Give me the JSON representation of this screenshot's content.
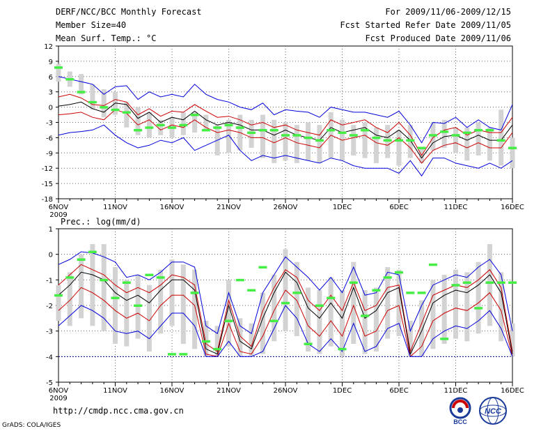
{
  "header": {
    "title": "DERF/NCC/BCC Monthly Forecast",
    "member": "Member Size=40",
    "variable": "Mean Surf. Temp.: °C",
    "period": "For 2009/11/06-2009/12/15",
    "started": "Fcst Started Refer Date 2009/11/05",
    "produced": "Fcst Produced Date 2009/11/06"
  },
  "footer": {
    "url": "http://cmdp.ncc.cma.gov.cn",
    "grads": "GrADS: COLA/IGES",
    "logo_bcc": "BCC",
    "logo_ncc": "NCC"
  },
  "colors": {
    "ensemble_max_min": "#0000dd",
    "spread": "#cc0000",
    "mean": "#000000",
    "box": "#d3d3d3",
    "observed": "#44ee44",
    "grid": "#666666"
  },
  "chart_data": [
    {
      "type": "line",
      "title": "Mean Surf. Temp.: °C",
      "ylim": [
        -18,
        12
      ],
      "yticks": [
        "12",
        "9",
        "6",
        "3",
        "0",
        "-3",
        "-6",
        "-9",
        "-12",
        "-15",
        "-18"
      ],
      "xtick_labels": [
        "6NOV",
        "11NOV",
        "16NOV",
        "21NOV",
        "26NOV",
        "1DEC",
        "6DEC",
        "11DEC",
        "16DEC"
      ],
      "xtick_sublabel": "2009",
      "days": 41,
      "series": [
        {
          "name": "max",
          "values": [
            6.0,
            5.5,
            5.0,
            4.5,
            2.5,
            4.0,
            4.2,
            1.5,
            3.0,
            2.0,
            2.5,
            2.0,
            4.5,
            2.5,
            1.5,
            1.0,
            0.0,
            -0.5,
            0.8,
            -1.5,
            -0.5,
            -0.8,
            -1.0,
            -2.0,
            0.0,
            -0.5,
            -1.0,
            -1.0,
            -1.5,
            -2.0,
            -0.8,
            -3.5,
            -7.0,
            -3.0,
            -3.2,
            -2.0,
            -4.0,
            -2.5,
            -4.0,
            -4.5,
            0.5
          ]
        },
        {
          "name": "upper",
          "values": [
            2.0,
            2.5,
            1.8,
            0.5,
            0.3,
            1.5,
            1.0,
            -1.5,
            -0.3,
            -1.8,
            -0.8,
            -1.0,
            0.5,
            -0.8,
            -2.0,
            -1.8,
            -2.5,
            -3.5,
            -3.0,
            -4.0,
            -3.5,
            -4.5,
            -5.0,
            -5.5,
            -2.5,
            -3.5,
            -3.0,
            -2.5,
            -4.0,
            -5.0,
            -3.0,
            -5.5,
            -9.5,
            -6.0,
            -4.5,
            -4.0,
            -5.5,
            -4.5,
            -5.0,
            -5.0,
            -2.0
          ]
        },
        {
          "name": "mean",
          "values": [
            0.2,
            0.5,
            1.0,
            -0.3,
            -1.0,
            0.8,
            0.5,
            -2.2,
            -1.0,
            -3.0,
            -2.0,
            -2.5,
            -0.8,
            -2.5,
            -3.5,
            -3.0,
            -3.5,
            -4.5,
            -4.5,
            -5.5,
            -4.5,
            -5.5,
            -6.0,
            -6.5,
            -4.0,
            -5.0,
            -4.5,
            -4.0,
            -5.5,
            -6.0,
            -4.5,
            -6.5,
            -10.0,
            -7.0,
            -5.8,
            -5.5,
            -6.5,
            -5.5,
            -6.5,
            -6.5,
            -3.5
          ]
        },
        {
          "name": "lower",
          "values": [
            -1.5,
            -1.3,
            -1.0,
            -2.0,
            -2.5,
            -0.5,
            -1.2,
            -3.5,
            -2.5,
            -4.5,
            -3.5,
            -4.0,
            -2.5,
            -4.0,
            -5.0,
            -4.5,
            -5.0,
            -6.0,
            -6.0,
            -7.0,
            -6.0,
            -7.0,
            -7.5,
            -8.0,
            -5.5,
            -6.5,
            -6.0,
            -5.5,
            -7.0,
            -7.5,
            -6.0,
            -8.0,
            -11.0,
            -8.5,
            -7.5,
            -7.0,
            -8.0,
            -7.0,
            -8.0,
            -8.0,
            -5.0
          ]
        },
        {
          "name": "min",
          "values": [
            -5.5,
            -5.0,
            -4.8,
            -4.5,
            -3.5,
            -5.5,
            -7.0,
            -8.0,
            -7.5,
            -6.5,
            -7.0,
            -6.0,
            -8.5,
            -7.5,
            -6.5,
            -5.5,
            -8.5,
            -10.5,
            -9.5,
            -10.0,
            -9.5,
            -10.0,
            -10.5,
            -11.0,
            -10.0,
            -10.5,
            -11.5,
            -12.0,
            -12.0,
            -12.0,
            -13.0,
            -10.5,
            -13.5,
            -10.0,
            -10.0,
            -11.0,
            -11.5,
            -12.0,
            -11.0,
            -12.0,
            -10.5
          ]
        }
      ],
      "boxes": [
        [
          5.0,
          8.5
        ],
        [
          4.0,
          7.0
        ],
        [
          2.5,
          6.5
        ],
        [
          -0.5,
          4.5
        ],
        [
          -2.0,
          3.5
        ],
        [
          -1.5,
          3.0
        ],
        [
          -4.0,
          1.0
        ],
        [
          -5.5,
          0.0
        ],
        [
          -6.0,
          -1.0
        ],
        [
          -5.5,
          -2.5
        ],
        [
          -6.0,
          -2.0
        ],
        [
          -5.5,
          -1.0
        ],
        [
          -5.0,
          -1.0
        ],
        [
          -4.5,
          -1.5
        ],
        [
          -9.5,
          -3.5
        ],
        [
          -9.0,
          -2.5
        ],
        [
          -8.5,
          -1.5
        ],
        [
          -8.0,
          -2.5
        ],
        [
          -10.0,
          -1.5
        ],
        [
          -11.0,
          -2.5
        ],
        [
          -10.5,
          -3.0
        ],
        [
          -11.0,
          -3.5
        ],
        [
          -10.5,
          -3.0
        ],
        [
          -11.0,
          -3.5
        ],
        [
          -10.0,
          -1.0
        ],
        [
          -10.5,
          -2.5
        ],
        [
          -9.5,
          -3.5
        ],
        [
          -10.0,
          -3.0
        ],
        [
          -11.0,
          -4.0
        ],
        [
          -10.0,
          -3.5
        ],
        [
          -11.5,
          -4.5
        ],
        [
          -10.0,
          -3.5
        ],
        [
          -11.0,
          -8.0
        ],
        [
          -8.5,
          -3.0
        ],
        [
          -8.0,
          -2.5
        ],
        [
          -9.0,
          -4.0
        ],
        [
          -10.5,
          -4.0
        ],
        [
          -9.5,
          -3.0
        ],
        [
          -10.5,
          -4.0
        ],
        [
          -11.5,
          -0.5
        ],
        [
          -12.0,
          -6.0
        ]
      ],
      "observed": [
        7.8,
        5.5,
        3.0,
        1.0,
        0.0,
        -0.5,
        -1.0,
        -4.5,
        -4.0,
        -3.5,
        -4.0,
        -3.5,
        -1.5,
        -4.5,
        -4.0,
        -3.5,
        -4.0,
        -5.0,
        -4.5,
        -4.5,
        -5.5,
        -5.5,
        -6.0,
        -6.5,
        -4.5,
        -5.0,
        -5.5,
        -4.5,
        -6.0,
        -6.5,
        -6.5,
        -6.5,
        -8.0,
        -5.5,
        -4.8,
        -5.5,
        -5.0,
        -4.5,
        -4.5,
        -6.5,
        -8.0
      ]
    },
    {
      "type": "line",
      "title": "Prec.: log(mm/d)",
      "ylim": [
        -5,
        1
      ],
      "yticks": [
        "1",
        "0",
        "-1",
        "-2",
        "-3",
        "-4",
        "-5"
      ],
      "xtick_labels": [
        "6NOV",
        "11NOV",
        "16NOV",
        "21NOV",
        "26NOV",
        "1DEC",
        "6DEC",
        "11DEC",
        "16DEC"
      ],
      "xtick_sublabel": "2009",
      "days": 41,
      "series": [
        {
          "name": "max",
          "values": [
            -0.4,
            -0.2,
            0.1,
            0.05,
            -0.1,
            -0.3,
            -0.9,
            -0.8,
            -1.0,
            -0.7,
            -0.3,
            -0.3,
            -0.5,
            -2.8,
            -3.1,
            -1.5,
            -2.8,
            -3.1,
            -1.5,
            -0.8,
            -0.1,
            -0.5,
            -0.9,
            -1.4,
            -0.9,
            -1.5,
            -0.5,
            -1.6,
            -1.5,
            -0.7,
            -0.8,
            -3.0,
            -2.0,
            -1.2,
            -1.0,
            -0.8,
            -0.9,
            -0.5,
            -0.2,
            -0.8,
            -3.0
          ]
        },
        {
          "name": "upper",
          "values": [
            -1.2,
            -0.8,
            -0.4,
            -0.6,
            -0.8,
            -1.2,
            -1.5,
            -1.3,
            -1.5,
            -1.2,
            -0.8,
            -0.9,
            -1.2,
            -3.5,
            -3.8,
            -1.8,
            -3.2,
            -3.6,
            -2.2,
            -1.3,
            -0.6,
            -0.9,
            -1.8,
            -2.2,
            -1.6,
            -2.2,
            -1.1,
            -2.2,
            -2.0,
            -1.3,
            -1.2,
            -3.8,
            -2.7,
            -1.6,
            -1.4,
            -1.2,
            -1.3,
            -1.0,
            -0.6,
            -1.3,
            -3.8
          ]
        },
        {
          "name": "mean",
          "values": [
            -1.6,
            -1.2,
            -0.7,
            -0.8,
            -1.0,
            -1.5,
            -1.8,
            -1.6,
            -1.9,
            -1.4,
            -1.0,
            -1.0,
            -1.4,
            -3.7,
            -3.9,
            -2.0,
            -3.4,
            -3.7,
            -2.5,
            -1.5,
            -0.7,
            -1.1,
            -2.1,
            -2.5,
            -1.9,
            -2.5,
            -1.3,
            -2.5,
            -2.2,
            -1.5,
            -1.3,
            -3.9,
            -3.0,
            -1.9,
            -1.6,
            -1.4,
            -1.5,
            -1.2,
            -0.8,
            -1.5,
            -3.9
          ]
        },
        {
          "name": "lower",
          "values": [
            -2.2,
            -1.8,
            -1.3,
            -1.5,
            -1.8,
            -2.2,
            -2.5,
            -2.3,
            -2.6,
            -2.0,
            -1.6,
            -1.6,
            -2.0,
            -3.9,
            -4.0,
            -2.7,
            -3.8,
            -3.9,
            -3.2,
            -2.2,
            -1.4,
            -1.8,
            -2.8,
            -3.2,
            -2.6,
            -3.2,
            -2.0,
            -3.2,
            -3.0,
            -2.2,
            -2.0,
            -4.0,
            -3.6,
            -2.6,
            -2.3,
            -2.1,
            -2.2,
            -1.9,
            -1.5,
            -2.2,
            -4.0
          ]
        },
        {
          "name": "min",
          "values": [
            -2.8,
            -2.4,
            -2.0,
            -2.2,
            -2.5,
            -3.0,
            -3.1,
            -3.0,
            -3.3,
            -2.8,
            -2.3,
            -2.3,
            -2.8,
            -4.0,
            -4.0,
            -3.4,
            -4.0,
            -4.0,
            -3.8,
            -2.9,
            -2.0,
            -2.5,
            -3.5,
            -3.8,
            -3.3,
            -3.8,
            -2.7,
            -3.8,
            -3.6,
            -2.9,
            -2.7,
            -4.0,
            -4.0,
            -3.3,
            -3.0,
            -2.8,
            -2.9,
            -2.6,
            -2.2,
            -2.9,
            -4.0
          ]
        }
      ],
      "boxes": [
        [
          -2.6,
          -1.2
        ],
        [
          -2.8,
          -0.7
        ],
        [
          -2.5,
          0.0
        ],
        [
          -2.8,
          0.4
        ],
        [
          -3.0,
          0.4
        ],
        [
          -3.5,
          -0.5
        ],
        [
          -3.6,
          -1.0
        ],
        [
          -3.3,
          -0.8
        ],
        [
          -3.8,
          -1.2
        ],
        [
          -3.1,
          -0.6
        ],
        [
          -2.8,
          -0.2
        ],
        [
          -3.5,
          -0.4
        ],
        [
          -3.7,
          -0.6
        ],
        [
          -4.0,
          -2.6
        ],
        [
          -4.0,
          -2.8
        ],
        [
          -3.6,
          -1.0
        ],
        [
          -4.0,
          -2.5
        ],
        [
          -4.0,
          -2.7
        ],
        [
          -3.9,
          -1.5
        ],
        [
          -3.4,
          -0.8
        ],
        [
          -3.0,
          0.2
        ],
        [
          -3.2,
          -0.3
        ],
        [
          -3.8,
          -1.3
        ],
        [
          -3.9,
          -1.4
        ],
        [
          -3.6,
          -0.9
        ],
        [
          -4.0,
          -1.4
        ],
        [
          -3.5,
          -0.3
        ],
        [
          -3.9,
          -1.4
        ],
        [
          -3.8,
          -1.3
        ],
        [
          -3.3,
          -0.5
        ],
        [
          -3.2,
          -0.6
        ],
        [
          -4.0,
          -2.6
        ],
        [
          -4.0,
          -1.8
        ],
        [
          -3.7,
          -1.0
        ],
        [
          -3.5,
          -0.8
        ],
        [
          -3.3,
          -0.6
        ],
        [
          -3.4,
          -0.7
        ],
        [
          -3.1,
          -0.3
        ],
        [
          -2.8,
          0.4
        ],
        [
          -3.4,
          -0.7
        ],
        [
          -4.0,
          -2.7
        ]
      ],
      "observed": [
        -1.6,
        -0.9,
        -0.2,
        0.1,
        -1.0,
        -1.7,
        -1.1,
        -2.0,
        -0.8,
        -0.9,
        -3.9,
        -3.9,
        -1.5,
        -3.4,
        -3.7,
        -2.6,
        -1.0,
        -1.4,
        -0.5,
        -2.6,
        -1.9,
        -1.5,
        -3.5,
        -2.0,
        -1.7,
        -3.7,
        -1.1,
        -2.4,
        -1.4,
        -0.9,
        -0.7,
        -1.5,
        -1.5,
        -0.4,
        -3.3,
        -1.2,
        -1.1,
        -2.1,
        -1.1,
        -1.1,
        -1.1
      ]
    }
  ]
}
